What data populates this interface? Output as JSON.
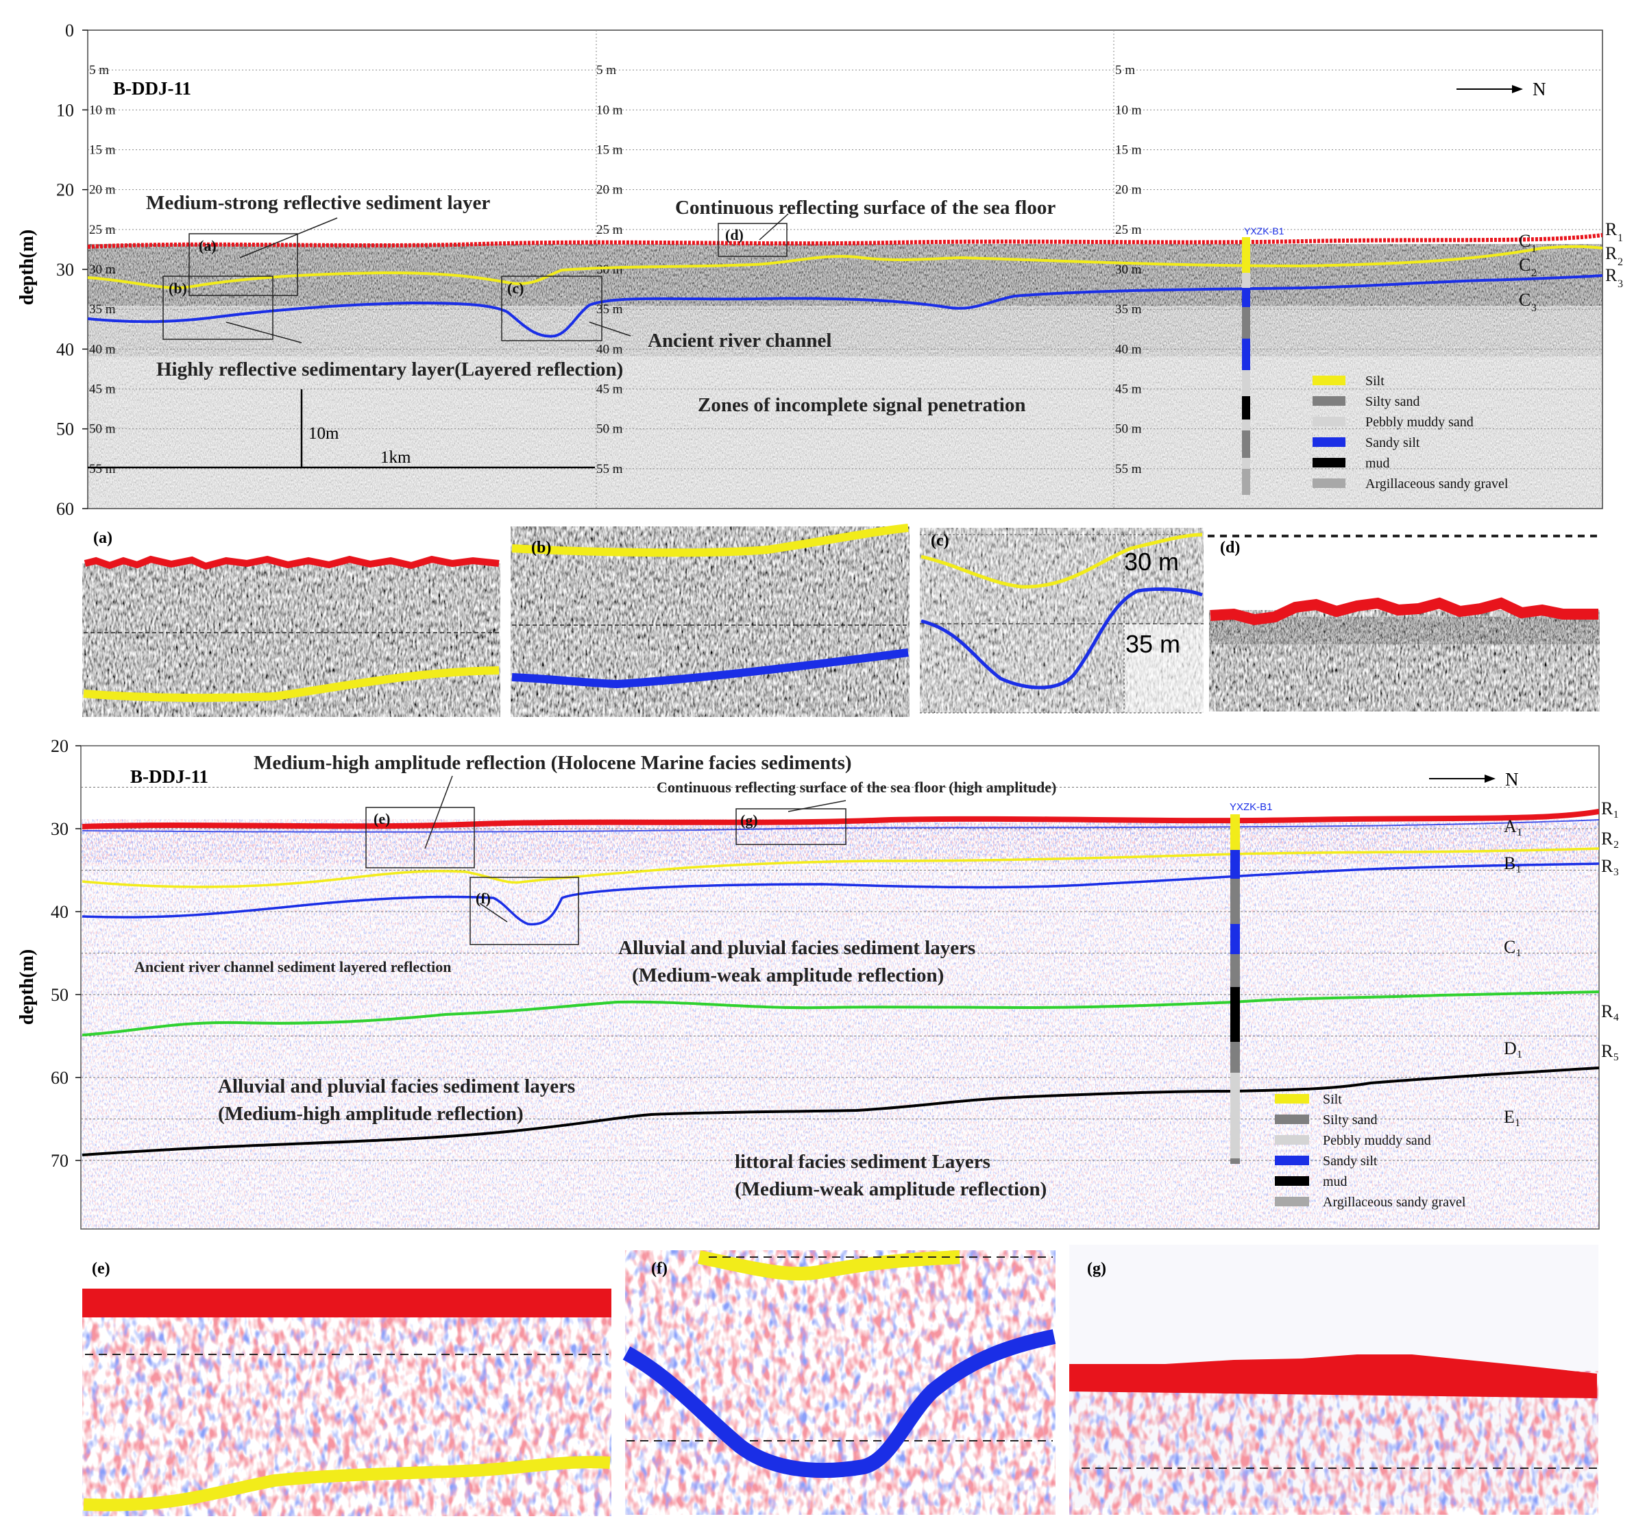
{
  "colors": {
    "seafloor": "#e8141c",
    "yellow": "#f2ec1a",
    "blue": "#1a2ee6",
    "green": "#2fd12f",
    "black": "#000000",
    "silty_sand": "#7f7f7f",
    "pebbly_muddy_sand": "#d4d4d4",
    "argillaceous_sandy_gravel": "#a8a8a8"
  },
  "top_panel": {
    "profile_name": "B-DDJ-11",
    "north": "N",
    "y_axis_label": "depth(m)",
    "y_ticks": [
      "0",
      "10",
      "20",
      "30",
      "40",
      "50",
      "60"
    ],
    "depth_marks": [
      "5 m",
      "10 m",
      "15 m",
      "20 m",
      "25 m",
      "30 m",
      "35 m",
      "40 m",
      "45 m",
      "50 m",
      "55 m"
    ],
    "scale_vertical": "10m",
    "scale_horizontal": "1km",
    "borehole": "YXZK-B1",
    "horizon_labels": {
      "R1": "R",
      "R1_sub": "1",
      "R2": "R",
      "R2_sub": "2",
      "R3": "R",
      "R3_sub": "3",
      "C1": "C",
      "C1_sub": "1",
      "C2": "C",
      "C2_sub": "2",
      "C3": "C",
      "C3_sub": "3"
    },
    "annotations": {
      "medium_strong": "Medium-strong reflective sediment layer",
      "continuous": "Continuous reflecting surface of the sea floor",
      "ancient_channel": "Ancient river channel",
      "highly_reflective": "Highly reflective sedimentary layer(Layered reflection)",
      "incomplete": "Zones of incomplete signal penetration"
    },
    "box_labels": [
      "(a)",
      "(b)",
      "(c)",
      "(d)"
    ],
    "legend": [
      "Silt",
      "Silty sand",
      "Pebbly muddy sand",
      "Sandy silt",
      "mud",
      "Argillaceous sandy gravel"
    ]
  },
  "zoom_row_1": {
    "labels": [
      "(a)",
      "(b)",
      "(c)",
      "(d)"
    ],
    "c_depth_30": "30 m",
    "c_depth_35": "35 m"
  },
  "bottom_panel": {
    "profile_name": "B-DDJ-11",
    "north": "N",
    "y_axis_label": "depth(m)",
    "y_ticks": [
      "20",
      "30",
      "40",
      "50",
      "60",
      "70"
    ],
    "borehole": "YXZK-B1",
    "horizon_labels": {
      "R1": "R₁",
      "R2": "R₂",
      "R3": "R₃",
      "R4": "R₄",
      "R5": "R₅",
      "A1": "A₁",
      "B1": "B₁",
      "C1": "C₁",
      "D1": "D₁",
      "E1": "E₁"
    },
    "annotations": {
      "holocene": "Medium-high amplitude reflection (Holocene Marine facies sediments)",
      "continuous_high": "Continuous reflecting surface of the sea floor (high amplitude)",
      "ancient_channel_layered": "Ancient river channel  sediment layered reflection",
      "alluvial_1": "Alluvial and pluvial  facies sediment layers",
      "alluvial_1b": "(Medium-weak amplitude reflection)",
      "alluvial_2": "Alluvial and pluvial  facies sediment layers",
      "alluvial_2b": "(Medium-high amplitude reflection)",
      "littoral": "littoral facies sediment Layers",
      "littoral_b": "(Medium-weak amplitude  reflection)"
    },
    "box_labels": [
      "(e)",
      "(f)",
      "(g)"
    ],
    "legend": [
      "Silt",
      "Silty sand",
      "Pebbly  muddy sand",
      "Sandy silt",
      "mud",
      "Argillaceous sandy gravel"
    ]
  },
  "zoom_row_2": {
    "labels": [
      "(e)",
      "(f)",
      "(g)"
    ]
  }
}
